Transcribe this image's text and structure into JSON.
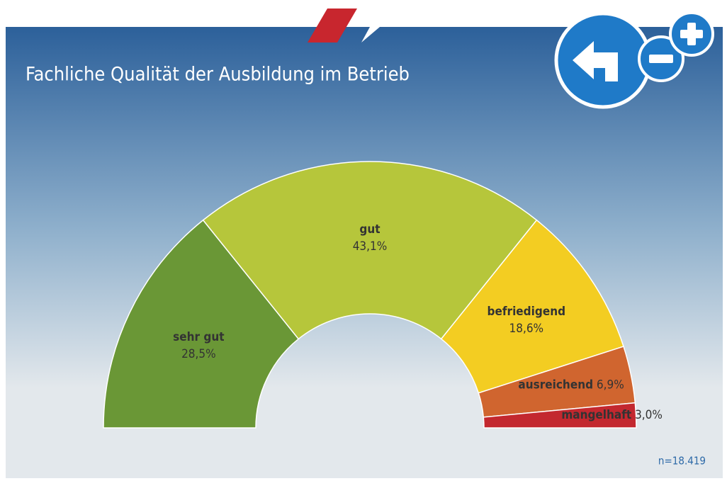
{
  "chart_data": {
    "type": "semi-donut",
    "title": "Fachliche Qualität der Ausbildung im Betrieb",
    "note": "n=18.419",
    "categories": [
      "sehr gut",
      "gut",
      "befriedigend",
      "ausreichend",
      "mangelhaft"
    ],
    "values": [
      28.5,
      43.1,
      18.6,
      6.9,
      3.0
    ],
    "value_labels": [
      "28,5%",
      "43,1%",
      "18,6%",
      "6,9%",
      "3,0%"
    ],
    "colors": [
      "#6a9736",
      "#b6c63b",
      "#f3cd22",
      "#d0652f",
      "#c3282f"
    ]
  }
}
